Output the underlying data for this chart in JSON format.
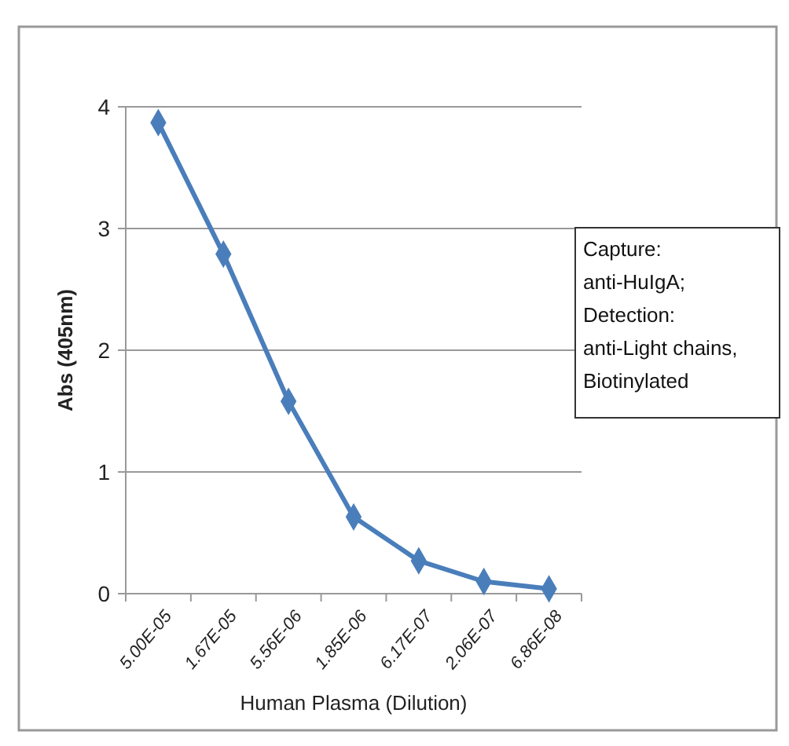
{
  "chart_data": {
    "type": "line",
    "xlabel": "Human Plasma (Dilution)",
    "ylabel": "Abs (405nm)",
    "categories": [
      "5.00E-05",
      "1.67E-05",
      "5.56E-06",
      "1.85E-06",
      "6.17E-07",
      "2.06E-07",
      "6.86E-08"
    ],
    "series": [
      {
        "color": "#4a7ebb",
        "values": [
          3.87,
          2.79,
          1.58,
          0.63,
          0.27,
          0.1,
          0.04
        ]
      }
    ],
    "ylim": [
      0,
      4
    ],
    "yticks": [
      0,
      1,
      2,
      3,
      4
    ],
    "grid": "y",
    "marker": "diamond",
    "line_style": "solid",
    "annotations": [
      "Capture:\nanti-HuIgA;\nDetection:\nanti-Light chains,\nBiotinylated"
    ]
  }
}
